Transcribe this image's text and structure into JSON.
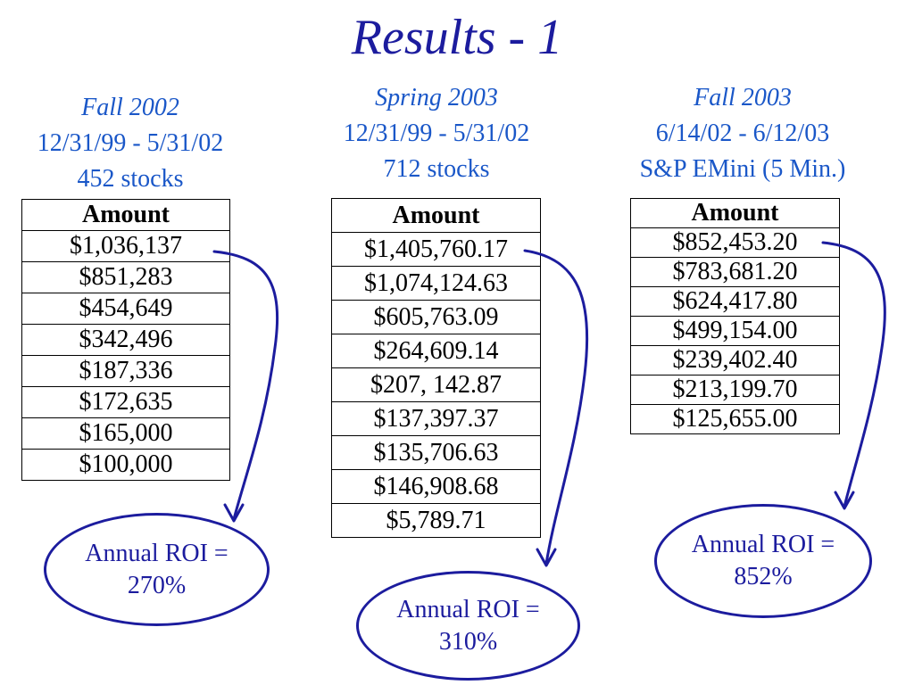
{
  "title": "Results - 1",
  "columns": [
    {
      "season": "Fall 2002",
      "period": "12/31/99 - 5/31/02",
      "instrument": "452 stocks",
      "header": "Amount",
      "amounts": [
        "$1,036,137",
        "$851,283",
        "$454,649",
        "$342,496",
        "$187,336",
        "$172,635",
        "$165,000",
        "$100,000"
      ],
      "roi_label": "Annual ROI =",
      "roi_value": "270%"
    },
    {
      "season": "Spring 2003",
      "period": "12/31/99 - 5/31/02",
      "instrument": "712 stocks",
      "header": "Amount",
      "amounts": [
        "$1,405,760.17",
        "$1,074,124.63",
        "$605,763.09",
        "$264,609.14",
        "$207, 142.87",
        "$137,397.37",
        "$135,706.63",
        "$146,908.68",
        "$5,789.71"
      ],
      "roi_label": "Annual ROI =",
      "roi_value": "310%"
    },
    {
      "season": "Fall 2003",
      "period": "6/14/02 - 6/12/03",
      "instrument": "S&P EMini (5 Min.)",
      "header": "Amount",
      "amounts": [
        "$852,453.20",
        "$783,681.20",
        "$624,417.80",
        "$499,154.00",
        "$239,402.40",
        "$213,199.70",
        "$125,655.00"
      ],
      "roi_label": "Annual ROI =",
      "roi_value": "852%"
    }
  ],
  "colors": {
    "title": "#1c1c9e",
    "header_text": "#1a57c8",
    "arrow": "#1c1c9e"
  }
}
